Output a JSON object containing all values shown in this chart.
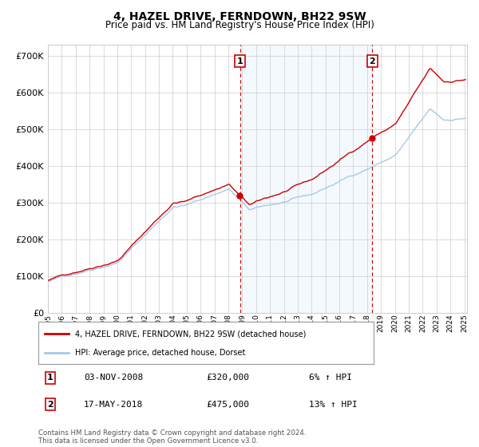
{
  "title": "4, HAZEL DRIVE, FERNDOWN, BH22 9SW",
  "subtitle": "Price paid vs. HM Land Registry's House Price Index (HPI)",
  "ylim": [
    0,
    730000
  ],
  "yticks": [
    0,
    100000,
    200000,
    300000,
    400000,
    500000,
    600000,
    700000
  ],
  "hpi_color": "#a8c8e8",
  "price_color": "#cc0000",
  "sale1_year": 2008.84,
  "sale1_price_val": 320000,
  "sale2_year": 2018.37,
  "sale2_price_val": 475000,
  "sale1_date": "03-NOV-2008",
  "sale1_price": "£320,000",
  "sale1_hpi": "6% ↑ HPI",
  "sale2_date": "17-MAY-2018",
  "sale2_price": "£475,000",
  "sale2_hpi": "13% ↑ HPI",
  "legend_label1": "4, HAZEL DRIVE, FERNDOWN, BH22 9SW (detached house)",
  "legend_label2": "HPI: Average price, detached house, Dorset",
  "footer": "Contains HM Land Registry data © Crown copyright and database right 2024.\nThis data is licensed under the Open Government Licence v3.0.",
  "background_color": "#ffffff",
  "shade_color": "#dceefb",
  "grid_color": "#cccccc"
}
